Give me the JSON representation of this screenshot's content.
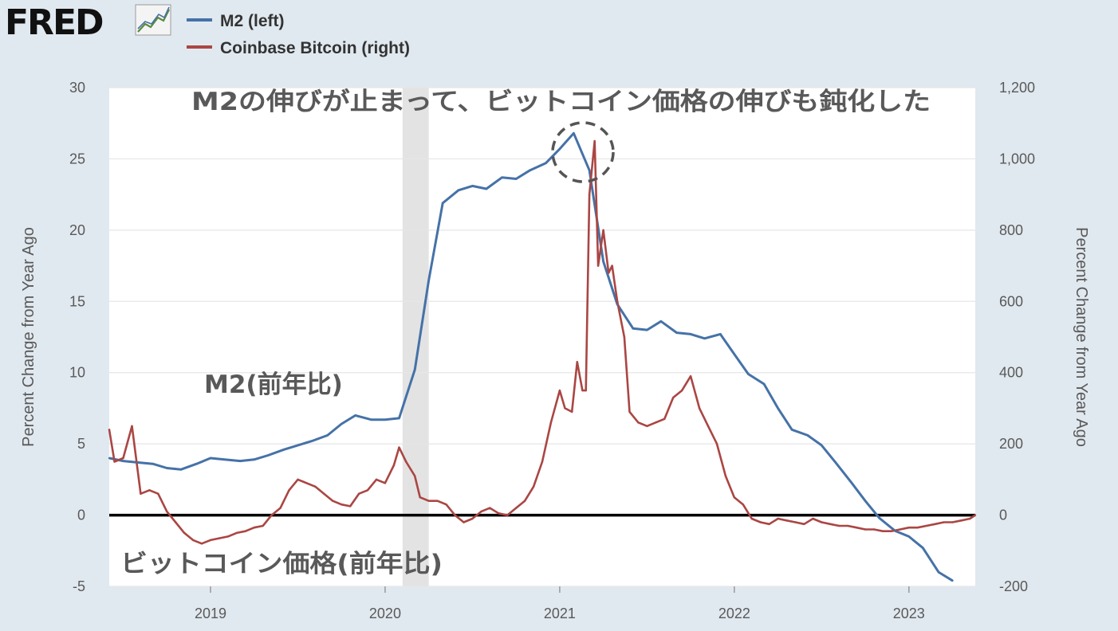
{
  "brand": {
    "logo_text": "FRED"
  },
  "chart_data": {
    "type": "line",
    "x_ticks": [
      "2019",
      "2020",
      "2021",
      "2022",
      "2023"
    ],
    "y_left": {
      "label": "Percent Change from Year Ago",
      "ylim": [
        -5,
        30
      ],
      "ticks": [
        "30",
        "25",
        "20",
        "15",
        "10",
        "5",
        "0",
        "-5"
      ]
    },
    "y_right": {
      "label": "Percent Change from Year Ago",
      "ylim": [
        -200,
        1200
      ],
      "ticks": [
        "1,200",
        "1,000",
        "800",
        "600",
        "400",
        "200",
        "0",
        "-200"
      ]
    },
    "recession_shading": [
      2020.1,
      2020.25
    ],
    "grid": true,
    "legend_position": "top-left",
    "series": [
      {
        "name": "M2 (left)",
        "axis": "left",
        "color": "#4572a7",
        "x": [
          2018.42,
          2018.5,
          2018.58,
          2018.67,
          2018.75,
          2018.83,
          2018.92,
          2019.0,
          2019.08,
          2019.17,
          2019.25,
          2019.33,
          2019.42,
          2019.5,
          2019.58,
          2019.67,
          2019.75,
          2019.83,
          2019.92,
          2020.0,
          2020.08,
          2020.17,
          2020.25,
          2020.33,
          2020.42,
          2020.5,
          2020.58,
          2020.67,
          2020.75,
          2020.83,
          2020.92,
          2021.0,
          2021.08,
          2021.17,
          2021.25,
          2021.33,
          2021.42,
          2021.5,
          2021.58,
          2021.67,
          2021.75,
          2021.83,
          2021.92,
          2022.0,
          2022.08,
          2022.17,
          2022.25,
          2022.33,
          2022.42,
          2022.5,
          2022.58,
          2022.67,
          2022.75,
          2022.83,
          2022.92,
          2023.0,
          2023.08,
          2023.17,
          2023.25
        ],
        "values": [
          4.0,
          3.8,
          3.7,
          3.6,
          3.3,
          3.2,
          3.6,
          4.0,
          3.9,
          3.8,
          3.9,
          4.2,
          4.6,
          4.9,
          5.2,
          5.6,
          6.4,
          7.0,
          6.7,
          6.7,
          6.8,
          10.2,
          16.5,
          21.9,
          22.8,
          23.1,
          22.9,
          23.7,
          23.6,
          24.2,
          24.7,
          25.7,
          26.8,
          24.2,
          17.8,
          14.8,
          13.1,
          13.0,
          13.6,
          12.8,
          12.7,
          12.4,
          12.7,
          11.3,
          9.9,
          9.2,
          7.5,
          6.0,
          5.6,
          4.9,
          3.7,
          2.3,
          1.0,
          -0.2,
          -1.1,
          -1.5,
          -2.3,
          -4.0,
          -4.6
        ]
      },
      {
        "name": "Coinbase Bitcoin (right)",
        "axis": "right",
        "color": "#aa4643",
        "x": [
          2018.42,
          2018.45,
          2018.5,
          2018.55,
          2018.6,
          2018.65,
          2018.7,
          2018.75,
          2018.8,
          2018.85,
          2018.9,
          2018.95,
          2019.0,
          2019.05,
          2019.1,
          2019.15,
          2019.2,
          2019.25,
          2019.3,
          2019.35,
          2019.4,
          2019.45,
          2019.5,
          2019.55,
          2019.6,
          2019.65,
          2019.7,
          2019.75,
          2019.8,
          2019.85,
          2019.9,
          2019.95,
          2020.0,
          2020.05,
          2020.08,
          2020.12,
          2020.17,
          2020.2,
          2020.25,
          2020.3,
          2020.35,
          2020.4,
          2020.45,
          2020.5,
          2020.55,
          2020.6,
          2020.65,
          2020.7,
          2020.75,
          2020.8,
          2020.85,
          2020.9,
          2020.95,
          2021.0,
          2021.03,
          2021.07,
          2021.1,
          2021.13,
          2021.15,
          2021.17,
          2021.2,
          2021.22,
          2021.25,
          2021.28,
          2021.3,
          2021.33,
          2021.37,
          2021.4,
          2021.45,
          2021.5,
          2021.55,
          2021.6,
          2021.65,
          2021.7,
          2021.75,
          2021.8,
          2021.85,
          2021.9,
          2021.95,
          2022.0,
          2022.05,
          2022.1,
          2022.15,
          2022.2,
          2022.25,
          2022.3,
          2022.35,
          2022.4,
          2022.45,
          2022.5,
          2022.55,
          2022.6,
          2022.65,
          2022.7,
          2022.75,
          2022.8,
          2022.85,
          2022.9,
          2022.95,
          2023.0,
          2023.05,
          2023.1,
          2023.15,
          2023.2,
          2023.25,
          2023.3,
          2023.35,
          2023.38
        ],
        "values": [
          240,
          150,
          160,
          250,
          60,
          70,
          60,
          10,
          -20,
          -50,
          -70,
          -80,
          -70,
          -65,
          -60,
          -50,
          -45,
          -35,
          -30,
          0,
          20,
          70,
          100,
          90,
          80,
          60,
          40,
          30,
          25,
          60,
          70,
          100,
          90,
          140,
          190,
          150,
          110,
          50,
          40,
          40,
          30,
          0,
          -20,
          -10,
          10,
          20,
          5,
          0,
          20,
          40,
          80,
          150,
          260,
          350,
          300,
          290,
          430,
          350,
          350,
          900,
          1050,
          700,
          800,
          680,
          700,
          600,
          500,
          290,
          260,
          250,
          260,
          270,
          330,
          350,
          390,
          300,
          250,
          200,
          110,
          50,
          30,
          -10,
          -20,
          -25,
          -10,
          -15,
          -20,
          -25,
          -10,
          -20,
          -25,
          -30,
          -30,
          -35,
          -40,
          -40,
          -45,
          -45,
          -40,
          -35,
          -35,
          -30,
          -25,
          -20,
          -20,
          -15,
          -10,
          0
        ]
      }
    ],
    "annotations": [
      {
        "id": "headline",
        "text": "M2の伸びが止まって、ビットコイン価格の伸びも鈍化した"
      },
      {
        "id": "m2_label",
        "text": "M2(前年比)"
      },
      {
        "id": "btc_label",
        "text": "ビットコイン価格(前年比)"
      }
    ]
  }
}
